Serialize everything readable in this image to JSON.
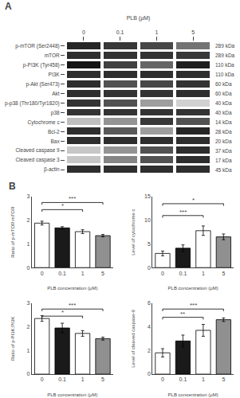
{
  "chart_data": [
    {
      "type": "heatmap",
      "title": "A",
      "x_label": "PLB (μM)",
      "categories": [
        "p-mTOR (Ser2448)",
        "mTOR",
        "p-PI3K (Tyr458)",
        "PI3K",
        "p-Akt (Ser473)",
        "Akt",
        "p-p38 (Thr180/Tyr1820)",
        "p38",
        "Cytochrome c",
        "Bcl-2",
        "Bax",
        "Cleaved caspase 9",
        "Cleaved caspase 3",
        "β-actin"
      ],
      "x": [
        "0",
        "0.1",
        "1",
        "5"
      ],
      "cells": [
        [
          0.85,
          0.78,
          0.72,
          0.55
        ],
        [
          0.82,
          0.8,
          0.8,
          0.78
        ],
        [
          0.92,
          0.75,
          0.6,
          0.88
        ],
        [
          0.82,
          0.82,
          0.82,
          0.82
        ],
        [
          0.82,
          0.68,
          0.72,
          0.8
        ],
        [
          0.82,
          0.8,
          0.8,
          0.82
        ],
        [
          0.8,
          0.68,
          0.38,
          0.18
        ],
        [
          0.8,
          0.8,
          0.8,
          0.8
        ],
        [
          0.25,
          0.42,
          0.78,
          0.68
        ],
        [
          0.82,
          0.65,
          0.38,
          0.85
        ],
        [
          0.82,
          0.82,
          0.82,
          0.82
        ],
        [
          0.22,
          0.42,
          0.68,
          0.82
        ],
        [
          0.22,
          0.48,
          0.68,
          0.82
        ],
        [
          0.82,
          0.82,
          0.82,
          0.82
        ]
      ],
      "zlim": [
        0,
        1
      ],
      "annotations": [
        {
          "category": "p-mTOR (Ser2448)",
          "text": "289 kDa"
        },
        {
          "category": "mTOR",
          "text": "289 kDa"
        },
        {
          "category": "p-PI3K (Tyr458)",
          "text": "110 kDa"
        },
        {
          "category": "PI3K",
          "text": "110 kDa"
        },
        {
          "category": "p-Akt (Ser473)",
          "text": "60 kDa"
        },
        {
          "category": "Akt",
          "text": "60 kDa"
        },
        {
          "category": "p-p38 (Thr180/Tyr1820)",
          "text": "40 kDa"
        },
        {
          "category": "p38",
          "text": "40 kDa"
        },
        {
          "category": "Cytochrome c",
          "text": "14 kDa"
        },
        {
          "category": "Bcl-2",
          "text": "28 kDa"
        },
        {
          "category": "Bax",
          "text": "20 kDa"
        },
        {
          "category": "Cleaved caspase 9",
          "text": "37 kDa"
        },
        {
          "category": "Cleaved caspase 3",
          "text": "17 kDa"
        },
        {
          "category": "β-actin",
          "text": "45 kDa"
        }
      ]
    },
    {
      "type": "bar",
      "title": "B",
      "x_label": "PLB concentration (μM)",
      "y_label": "Ratio of p-mTOR:mTOR",
      "categories": [
        "0",
        "0.1",
        "1",
        "5"
      ],
      "values": [
        1.88,
        1.68,
        1.52,
        1.35
      ],
      "errors": [
        0.08,
        0.05,
        0.08,
        0.05
      ],
      "colors": [
        "#ffffff",
        "#1a1a1a",
        "#ffffff",
        "#909090"
      ],
      "ylim": [
        0,
        3
      ],
      "yticks": [
        0,
        1,
        2,
        3
      ],
      "grid": false,
      "annotations": [
        {
          "from": "0",
          "to": "1",
          "y": 2.45,
          "text": "*"
        },
        {
          "from": "0",
          "to": "5",
          "y": 2.75,
          "text": "***"
        }
      ]
    },
    {
      "type": "bar",
      "x_label": "PLB concentration (μM)",
      "y_label": "Level of cytochrome c",
      "categories": [
        "0",
        "0.1",
        "1",
        "5"
      ],
      "values": [
        3.0,
        4.1,
        7.8,
        6.5
      ],
      "errors": [
        0.5,
        0.7,
        1.0,
        0.6
      ],
      "colors": [
        "#ffffff",
        "#1a1a1a",
        "#ffffff",
        "#909090"
      ],
      "ylim": [
        0,
        15
      ],
      "yticks": [
        0,
        5,
        10,
        15
      ],
      "grid": false,
      "annotations": [
        {
          "from": "0",
          "to": "1",
          "y": 11.0,
          "text": "***"
        },
        {
          "from": "0",
          "to": "5",
          "y": 13.5,
          "text": "*"
        }
      ]
    },
    {
      "type": "bar",
      "x_label": "PLB concentration (μM)",
      "y_label": "Ratio of p-PI3K:PI3K",
      "categories": [
        "0",
        "0.1",
        "1",
        "5"
      ],
      "values": [
        2.35,
        1.95,
        1.72,
        1.5
      ],
      "errors": [
        0.12,
        0.2,
        0.12,
        0.06
      ],
      "colors": [
        "#ffffff",
        "#1a1a1a",
        "#ffffff",
        "#909090"
      ],
      "ylim": [
        0,
        3
      ],
      "yticks": [
        0,
        1,
        2,
        3
      ],
      "grid": false,
      "annotations": [
        {
          "from": "0",
          "to": "1",
          "y": 2.45,
          "text": "*"
        },
        {
          "from": "0",
          "to": "5",
          "y": 2.75,
          "text": "***"
        }
      ]
    },
    {
      "type": "bar",
      "x_label": "PLB concentration (μM)",
      "y_label": "Level of cleaved caspase-9",
      "categories": [
        "0",
        "0.1",
        "1",
        "5"
      ],
      "values": [
        1.8,
        2.8,
        3.7,
        4.6
      ],
      "errors": [
        0.35,
        0.5,
        0.5,
        0.15
      ],
      "colors": [
        "#ffffff",
        "#1a1a1a",
        "#ffffff",
        "#909090"
      ],
      "ylim": [
        0,
        6
      ],
      "yticks": [
        0,
        2,
        4,
        6
      ],
      "grid": false,
      "annotations": [
        {
          "from": "0",
          "to": "1",
          "y": 4.8,
          "text": "**"
        },
        {
          "from": "0",
          "to": "5",
          "y": 5.5,
          "text": "***"
        }
      ]
    }
  ]
}
